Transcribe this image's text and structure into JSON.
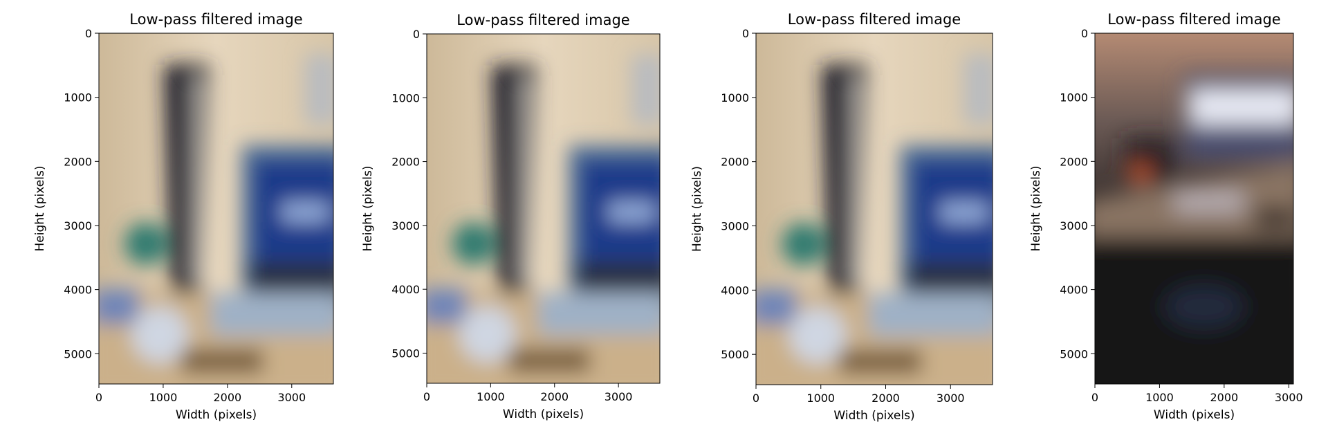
{
  "chart_data": [
    {
      "type": "image",
      "title": "Low-pass filtered image",
      "xlabel": "Width (pixels)",
      "ylabel": "Height (pixels)",
      "xlim": [
        0,
        3648
      ],
      "ylim": [
        5472,
        0
      ],
      "xticks": [
        0,
        1000,
        2000,
        3000
      ],
      "yticks": [
        0,
        1000,
        2000,
        3000,
        4000,
        5000
      ],
      "scene": "light"
    },
    {
      "type": "image",
      "title": "Low-pass filtered image",
      "xlabel": "Width (pixels)",
      "ylabel": "Height (pixels)",
      "xlim": [
        0,
        3648
      ],
      "ylim": [
        5472,
        0
      ],
      "xticks": [
        0,
        1000,
        2000,
        3000
      ],
      "yticks": [
        0,
        1000,
        2000,
        3000,
        4000,
        5000
      ],
      "scene": "light"
    },
    {
      "type": "image",
      "title": "Low-pass filtered image",
      "xlabel": "Width (pixels)",
      "ylabel": "Height (pixels)",
      "xlim": [
        0,
        3648
      ],
      "ylim": [
        5472,
        0
      ],
      "xticks": [
        0,
        1000,
        2000,
        3000
      ],
      "yticks": [
        0,
        1000,
        2000,
        3000,
        4000,
        5000
      ],
      "scene": "light"
    },
    {
      "type": "image",
      "title": "Low-pass filtered image",
      "xlabel": "Width (pixels)",
      "ylabel": "Height (pixels)",
      "xlim": [
        0,
        3072
      ],
      "ylim": [
        5472,
        0
      ],
      "xticks": [
        0,
        1000,
        2000,
        3000
      ],
      "yticks": [
        0,
        1000,
        2000,
        3000,
        4000,
        5000
      ],
      "scene": "dark"
    }
  ]
}
